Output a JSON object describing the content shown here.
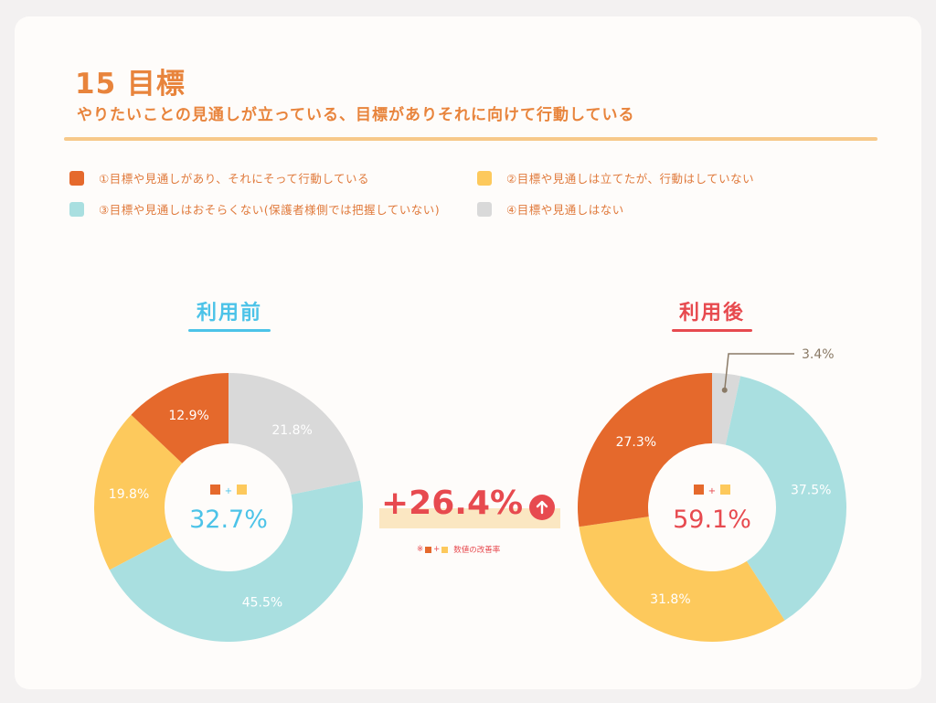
{
  "header": {
    "title": "15 目標",
    "subtitle": "やりたいことの見通しが立っている、目標がありそれに向けて行動している"
  },
  "colors": {
    "orange": "#e5692c",
    "yellow": "#fdc95c",
    "cyan": "#a9dfe0",
    "gray": "#d9d9d9",
    "before_accent": "#4cc3e8",
    "after_accent": "#e74a4f"
  },
  "legend": [
    {
      "label": "①目標や見通しがあり、それにそって行動している",
      "color": "#e5692c"
    },
    {
      "label": "②目標や見通しは立てたが、行動はしていない",
      "color": "#fdc95c"
    },
    {
      "label": "③目標や見通しはおそらくない(保護者様側では把握していない)",
      "color": "#a9dfe0"
    },
    {
      "label": "④目標や見通しはない",
      "color": "#d9d9d9"
    }
  ],
  "chart_data": [
    {
      "type": "pie",
      "title": "利用前",
      "categories": [
        "①目標や見通しがあり、それにそって行動している",
        "②目標や見通しは立てたが、行動はしていない",
        "③目標や見通しはおそらくない(保護者様側では把握していない)",
        "④目標や見通しはない"
      ],
      "values": [
        12.9,
        19.8,
        45.5,
        21.8
      ],
      "labels": [
        "12.9%",
        "19.8%",
        "45.5%",
        "21.8%"
      ],
      "center_value": "32.7%",
      "center_symbol": "+"
    },
    {
      "type": "pie",
      "title": "利用後",
      "categories": [
        "①目標や見通しがあり、それにそって行動している",
        "②目標や見通しは立てたが、行動はしていない",
        "③目標や見通しはおそらくない(保護者様側では把握していない)",
        "④目標や見通しはない"
      ],
      "values": [
        27.3,
        31.8,
        37.5,
        3.4
      ],
      "labels": [
        "27.3%",
        "31.8%",
        "37.5%",
        "3.4%"
      ],
      "center_value": "59.1%",
      "center_symbol": "+"
    }
  ],
  "improvement": {
    "value": "+26.4%",
    "note_prefix": "※",
    "note_plus": "+",
    "note_suffix": "数値の改善率"
  }
}
